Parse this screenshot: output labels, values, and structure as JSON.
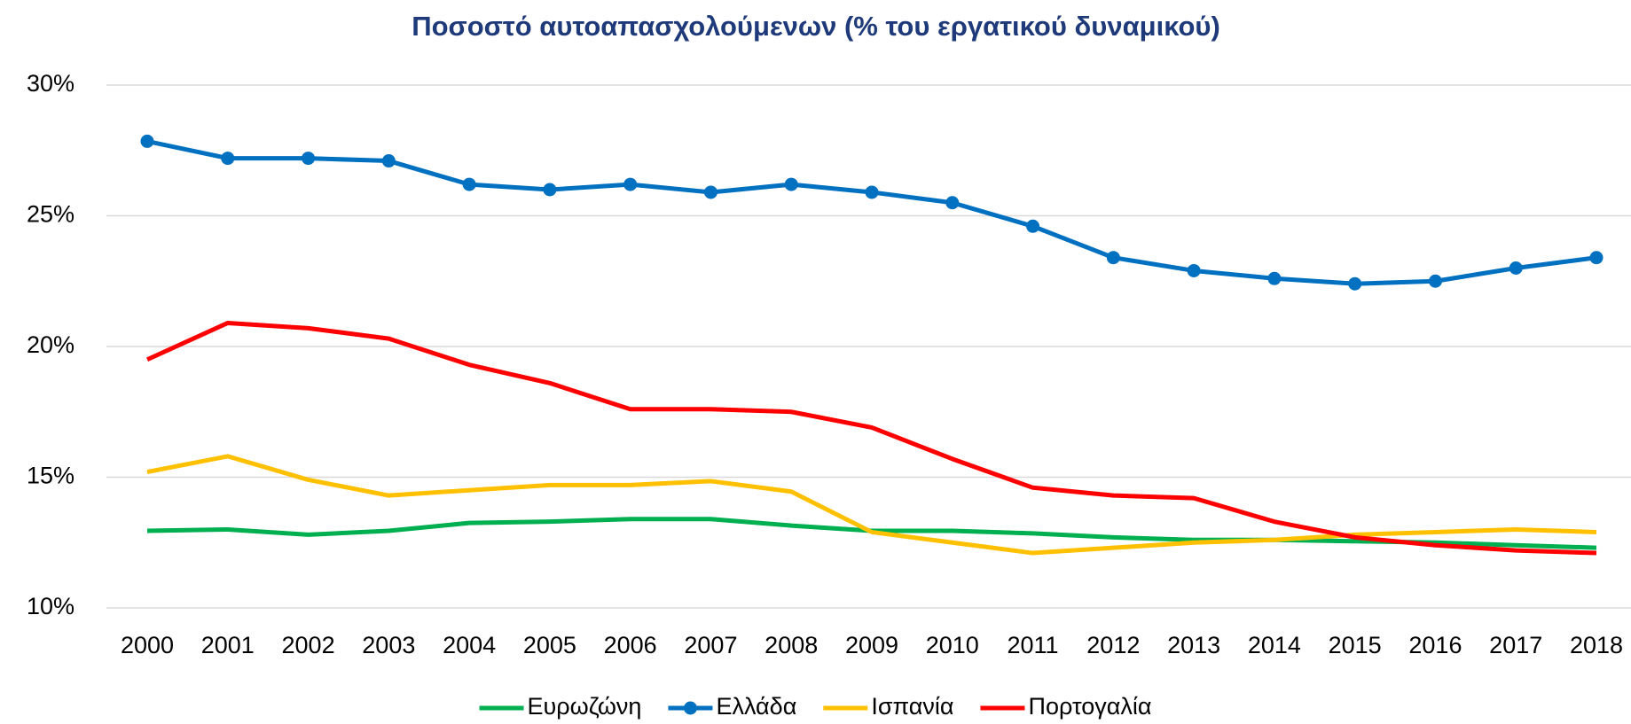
{
  "chart_data": {
    "type": "line",
    "title": "Ποσοστό αυτοαπασχολούμενων (% του εργατικού δυναμικού)",
    "categories": [
      "2000",
      "2001",
      "2002",
      "2003",
      "2004",
      "2005",
      "2006",
      "2007",
      "2008",
      "2009",
      "2010",
      "2011",
      "2012",
      "2013",
      "2014",
      "2015",
      "2016",
      "2017",
      "2018"
    ],
    "series": [
      {
        "name": "Ευρωζώνη",
        "color": "#00b050",
        "marker": false,
        "values": [
          12.95,
          13.0,
          12.8,
          12.95,
          13.25,
          13.3,
          13.4,
          13.4,
          13.15,
          12.95,
          12.95,
          12.85,
          12.7,
          12.6,
          12.6,
          12.55,
          12.5,
          12.4,
          12.3
        ]
      },
      {
        "name": "Ελλάδα",
        "color": "#0070c0",
        "marker": true,
        "values": [
          27.85,
          27.2,
          27.2,
          27.1,
          26.2,
          26.0,
          26.2,
          25.9,
          26.2,
          25.9,
          25.5,
          24.6,
          23.4,
          22.9,
          22.6,
          22.4,
          22.5,
          23.0,
          23.4
        ]
      },
      {
        "name": "Ισπανία",
        "color": "#ffc000",
        "marker": false,
        "values": [
          15.2,
          15.8,
          14.9,
          14.3,
          14.5,
          14.7,
          14.7,
          14.85,
          14.45,
          12.9,
          12.5,
          12.1,
          12.3,
          12.5,
          12.6,
          12.8,
          12.9,
          13.0,
          12.9
        ]
      },
      {
        "name": "Πορτογαλία",
        "color": "#ff0000",
        "marker": false,
        "values": [
          19.5,
          20.9,
          20.7,
          20.3,
          19.3,
          18.6,
          17.6,
          17.6,
          17.5,
          16.9,
          15.7,
          14.6,
          14.3,
          14.2,
          13.3,
          12.7,
          12.4,
          12.2,
          12.1
        ]
      }
    ],
    "ylim": [
      10,
      30
    ],
    "yticks": [
      {
        "value": 10,
        "label": "10%"
      },
      {
        "value": 15,
        "label": "15%"
      },
      {
        "value": 20,
        "label": "20%"
      },
      {
        "value": 25,
        "label": "25%"
      },
      {
        "value": 30,
        "label": "30%"
      }
    ],
    "grid": true,
    "legend": "bottom"
  }
}
